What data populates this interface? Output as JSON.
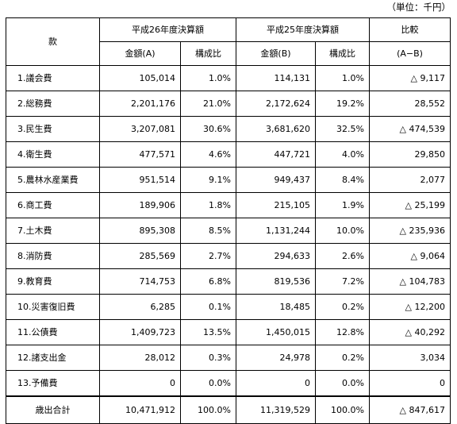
{
  "unit_note": "（単位：千円）",
  "header": {
    "item": "款",
    "fy26": "平成26年度決算額",
    "fy25": "平成25年度決算額",
    "comparison": "比較",
    "amount_a": "金額(A)",
    "ratio_a": "構成比",
    "amount_b": "金額(B)",
    "ratio_b": "構成比",
    "diff": "(A−B)"
  },
  "rows": [
    {
      "name": "1.議会費",
      "a": "105,014",
      "ra": "1.0%",
      "b": "114,131",
      "rb": "1.0%",
      "diff": "△ 9,117"
    },
    {
      "name": "2.総務費",
      "a": "2,201,176",
      "ra": "21.0%",
      "b": "2,172,624",
      "rb": "19.2%",
      "diff": "28,552"
    },
    {
      "name": "3.民生費",
      "a": "3,207,081",
      "ra": "30.6%",
      "b": "3,681,620",
      "rb": "32.5%",
      "diff": "△ 474,539"
    },
    {
      "name": "4.衛生費",
      "a": "477,571",
      "ra": "4.6%",
      "b": "447,721",
      "rb": "4.0%",
      "diff": "29,850"
    },
    {
      "name": "5.農林水産業費",
      "a": "951,514",
      "ra": "9.1%",
      "b": "949,437",
      "rb": "8.4%",
      "diff": "2,077"
    },
    {
      "name": "6.商工費",
      "a": "189,906",
      "ra": "1.8%",
      "b": "215,105",
      "rb": "1.9%",
      "diff": "△ 25,199"
    },
    {
      "name": "7.土木費",
      "a": "895,308",
      "ra": "8.5%",
      "b": "1,131,244",
      "rb": "10.0%",
      "diff": "△ 235,936"
    },
    {
      "name": "8.消防費",
      "a": "285,569",
      "ra": "2.7%",
      "b": "294,633",
      "rb": "2.6%",
      "diff": "△ 9,064"
    },
    {
      "name": "9.教育費",
      "a": "714,753",
      "ra": "6.8%",
      "b": "819,536",
      "rb": "7.2%",
      "diff": "△ 104,783"
    },
    {
      "name": "10.災害復旧費",
      "a": "6,285",
      "ra": "0.1%",
      "b": "18,485",
      "rb": "0.2%",
      "diff": "△ 12,200"
    },
    {
      "name": "11.公債費",
      "a": "1,409,723",
      "ra": "13.5%",
      "b": "1,450,015",
      "rb": "12.8%",
      "diff": "△ 40,292"
    },
    {
      "name": "12.諸支出金",
      "a": "28,012",
      "ra": "0.3%",
      "b": "24,978",
      "rb": "0.2%",
      "diff": "3,034"
    },
    {
      "name": "13.予備費",
      "a": "0",
      "ra": "0.0%",
      "b": "0",
      "rb": "0.0%",
      "diff": "0"
    }
  ],
  "total": {
    "name": "歳出合計",
    "a": "10,471,912",
    "ra": "100.0%",
    "b": "11,319,529",
    "rb": "100.0%",
    "diff": "△ 847,617"
  }
}
